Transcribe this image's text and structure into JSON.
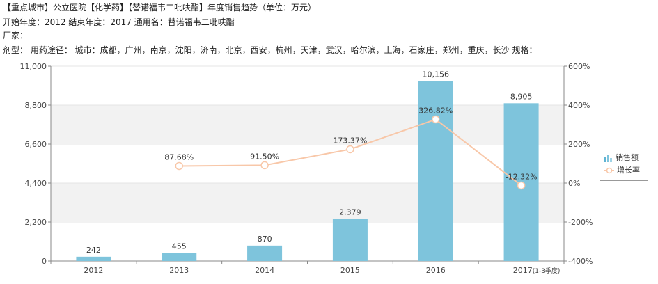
{
  "header": {
    "title": "【重点城市】公立医院【化学药】【替诺福韦二吡呋酯】年度销售趋势（单位：万元）",
    "line2": "开始年度：2012   结束年度：2017   通用名：替诺福韦二吡呋酯",
    "line3": "厂家：",
    "line4": "剂型：   用药途径：   城市：成都，广州，南京，沈阳，济南，北京，西安，杭州，天津，武汉，哈尔滨，上海，石家庄，郑州，重庆，长沙    规格："
  },
  "legend": {
    "bar_label": "销售额",
    "line_label": "增长率"
  },
  "colors": {
    "bar": "#7ec4dc",
    "line": "#f8c7a8",
    "grid_band": "#f2f2f2",
    "axis": "#888888"
  },
  "chart_data": {
    "type": "bar",
    "categories": [
      "2012",
      "2013",
      "2014",
      "2015",
      "2016",
      "2017"
    ],
    "category_labels": [
      "2012",
      "2013",
      "2014",
      "2015",
      "2016",
      "2017"
    ],
    "category_note": "(1-3季度)",
    "series": [
      {
        "name": "销售额",
        "type": "bar",
        "values": [
          242,
          455,
          870,
          2379,
          10156,
          8905
        ],
        "labels": [
          "242",
          "455",
          "870",
          "2,379",
          "10,156",
          "8,905"
        ]
      },
      {
        "name": "增长率",
        "type": "line",
        "values": [
          null,
          87.68,
          91.5,
          173.37,
          326.82,
          -12.32
        ],
        "labels": [
          "",
          "87.68%",
          "91.50%",
          "173.37%",
          "326.82%",
          "-12.32%"
        ]
      }
    ],
    "ylim": [
      0,
      11000
    ],
    "yticks": [
      "0",
      "2,200",
      "4,400",
      "6,600",
      "8,800",
      "11,000"
    ],
    "ylim_right": [
      -400,
      600
    ],
    "yticks_right": [
      "-400%",
      "-200%",
      "0%",
      "200%",
      "400%",
      "600%"
    ],
    "legend_position": "right"
  }
}
